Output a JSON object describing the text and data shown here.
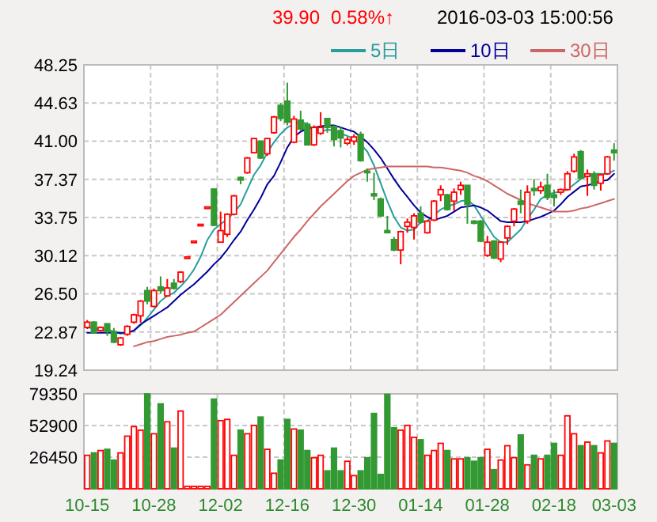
{
  "chart_data": [
    {
      "type": "candlestick",
      "annotations": [
        "39.90",
        "0.58%↑",
        "2016-03-03 15:00:56"
      ],
      "legend": "top right",
      "grid": true,
      "tick_labels": "y",
      "categories": [
        null,
        null,
        null,
        null,
        null,
        null,
        null,
        null,
        null,
        null,
        null,
        null,
        null,
        null,
        null,
        null,
        null,
        null,
        null,
        null,
        null,
        null,
        null,
        null,
        null,
        null,
        null,
        null,
        null,
        null,
        null,
        null,
        null,
        null,
        null,
        null,
        null,
        null,
        null,
        null,
        null,
        null,
        null,
        null,
        null,
        null,
        null,
        null,
        null,
        null,
        null,
        null,
        null,
        null,
        null,
        null,
        null,
        null,
        null,
        null,
        null,
        null,
        null,
        null,
        null,
        null,
        null,
        null,
        null,
        null,
        null,
        null,
        null,
        null,
        null,
        null,
        null,
        null,
        null,
        null
      ],
      "ylim": [
        19.24,
        48.25
      ],
      "yticks": [
        19.24,
        22.87,
        {
          "value": 26.5,
          "label": "26.50"
        },
        30.12,
        33.75,
        37.37,
        {
          "value": 41,
          "label": "41.00"
        },
        44.63,
        48.25
      ],
      "colors": [
        "#ff0000",
        "#339933",
        "#ff0000",
        "#339933",
        "#339933",
        "#ff0000",
        "#ff0000",
        "#ff0000",
        "#ff0000",
        "#339933",
        "#ff0000",
        "#339933",
        "#ff0000",
        "#339933",
        "#ff0000",
        "#ff0000",
        "#ff0000",
        "#ff0000",
        "#ff0000",
        "#339933",
        "#ff0000",
        "#ff0000",
        "#ff0000",
        "#339933",
        "#ff0000",
        "#ff0000",
        "#339933",
        "#ff0000",
        "#ff0000",
        "#339933",
        "#339933",
        "#ff0000",
        "#339933",
        "#339933",
        "#ff0000",
        "#ff0000",
        "#339933",
        "#339933",
        "#339933",
        "#ff0000",
        "#ff0000",
        "#339933",
        "#339933",
        "#339933",
        "#339933",
        "#339933",
        "#339933",
        "#ff0000",
        "#ff0000",
        "#ff0000",
        "#339933",
        "#ff0000",
        "#ff0000",
        "#ff0000",
        "#339933",
        "#ff0000",
        "#ff0000",
        "#339933",
        "#339933",
        "#339933",
        "#ff0000",
        "#339933",
        "#ff0000",
        "#ff0000",
        "#ff0000",
        "#339933",
        "#ff0000",
        "#339933",
        "#ff0000",
        "#339933",
        "#339933",
        "#ff0000",
        "#ff0000",
        "#ff0000",
        "#339933",
        "#ff0000",
        "#339933",
        "#ff0000",
        "#ff0000",
        "#339933"
      ],
      "ohlc": [
        [
          23.3,
          24.0,
          23.15,
          23.8
        ],
        [
          23.8,
          23.9,
          22.7,
          22.8
        ],
        [
          23.0,
          23.4,
          22.9,
          23.3
        ],
        [
          23.65,
          23.65,
          22.5,
          22.9
        ],
        [
          22.9,
          23.25,
          21.8,
          21.9
        ],
        [
          21.65,
          22.4,
          21.55,
          22.3
        ],
        [
          22.65,
          23.5,
          22.5,
          23.4
        ],
        [
          23.8,
          24.6,
          23.65,
          24.5
        ],
        [
          24.4,
          25.9,
          23.75,
          25.8
        ],
        [
          26.8,
          27.15,
          25.5,
          25.8
        ],
        [
          25.3,
          27.0,
          25.2,
          26.8
        ],
        [
          27.15,
          28.15,
          26.5,
          26.8
        ],
        [
          26.3,
          27.9,
          26.2,
          27.05
        ],
        [
          27.5,
          27.9,
          26.9,
          27.0
        ],
        [
          27.65,
          28.65,
          27.5,
          28.55
        ],
        [
          30.0,
          30.0,
          30.0,
          30.0
        ],
        [
          31.5,
          31.5,
          31.5,
          31.5
        ],
        [
          33.1,
          33.1,
          33.1,
          33.1
        ],
        [
          34.75,
          34.75,
          34.75,
          34.75
        ],
        [
          36.45,
          36.45,
          32.95,
          33.0
        ],
        [
          31.4,
          34.3,
          31.4,
          32.5
        ],
        [
          32.15,
          34.15,
          31.9,
          34.05
        ],
        [
          34.05,
          35.9,
          33.95,
          35.8
        ],
        [
          37.55,
          37.65,
          36.9,
          37.3
        ],
        [
          38.0,
          39.5,
          37.9,
          39.4
        ],
        [
          39.9,
          41.3,
          39.85,
          41.25
        ],
        [
          41.0,
          41.05,
          39.3,
          39.4
        ],
        [
          39.8,
          41.3,
          39.6,
          41.25
        ],
        [
          41.8,
          43.4,
          41.7,
          43.3
        ],
        [
          44.4,
          44.65,
          42.9,
          43.15
        ],
        [
          44.8,
          46.55,
          42.5,
          42.8
        ],
        [
          40.9,
          43.4,
          40.8,
          43.1
        ],
        [
          43.0,
          43.9,
          42.0,
          42.15
        ],
        [
          42.6,
          42.8,
          40.6,
          40.65
        ],
        [
          40.65,
          42.5,
          40.55,
          42.3
        ],
        [
          41.75,
          43.75,
          41.6,
          42.3
        ],
        [
          43.15,
          43.15,
          41.8,
          42.3
        ],
        [
          42.4,
          42.5,
          40.5,
          41.15
        ],
        [
          42.0,
          42.3,
          40.4,
          41.3
        ],
        [
          40.8,
          41.4,
          40.6,
          41.15
        ],
        [
          41.0,
          41.65,
          40.65,
          41.4
        ],
        [
          41.65,
          41.9,
          39.05,
          39.15
        ],
        [
          38.15,
          38.4,
          37.15,
          38.05
        ],
        [
          36.0,
          38.0,
          35.4,
          35.8
        ],
        [
          35.5,
          35.65,
          33.8,
          33.9
        ],
        [
          32.5,
          33.9,
          32.3,
          32.3
        ],
        [
          31.65,
          31.9,
          30.55,
          30.65
        ],
        [
          30.65,
          32.5,
          29.3,
          32.4
        ],
        [
          32.9,
          33.65,
          32.3,
          33.3
        ],
        [
          32.8,
          34.15,
          31.65,
          33.9
        ],
        [
          34.15,
          34.8,
          33.15,
          33.3
        ],
        [
          32.3,
          33.5,
          32.2,
          33.4
        ],
        [
          33.5,
          35.4,
          33.4,
          35.3
        ],
        [
          35.9,
          36.8,
          35.3,
          36.4
        ],
        [
          35.9,
          36.0,
          34.4,
          34.5
        ],
        [
          35.3,
          36.5,
          34.4,
          36.15
        ],
        [
          36.4,
          37.15,
          35.9,
          36.8
        ],
        [
          36.8,
          36.8,
          33.15,
          35.0
        ],
        [
          33.4,
          33.5,
          33.1,
          33.2
        ],
        [
          33.4,
          33.5,
          31.4,
          31.5
        ],
        [
          30.15,
          32.0,
          30.0,
          31.4
        ],
        [
          31.5,
          31.6,
          29.8,
          29.9
        ],
        [
          29.8,
          31.5,
          29.5,
          31.4
        ],
        [
          31.8,
          33.0,
          31.15,
          32.9
        ],
        [
          33.4,
          34.65,
          32.9,
          34.55
        ],
        [
          35.3,
          36.4,
          34.15,
          35.0
        ],
        [
          33.4,
          36.8,
          33.15,
          36.15
        ],
        [
          36.5,
          37.4,
          35.8,
          36.3
        ],
        [
          36.3,
          37.15,
          36.0,
          36.65
        ],
        [
          36.8,
          37.9,
          35.4,
          35.65
        ],
        [
          35.9,
          36.4,
          34.8,
          35.65
        ],
        [
          36.15,
          36.5,
          35.9,
          36.4
        ],
        [
          36.4,
          38.15,
          36.3,
          37.9
        ],
        [
          38.15,
          39.8,
          38.0,
          39.5
        ],
        [
          40.0,
          40.15,
          37.4,
          37.5
        ],
        [
          37.65,
          38.3,
          35.8,
          37.9
        ],
        [
          37.9,
          38.15,
          36.4,
          36.8
        ],
        [
          37.0,
          37.9,
          36.3,
          37.8
        ],
        [
          37.9,
          39.6,
          37.8,
          39.5
        ],
        [
          40.15,
          40.8,
          39.15,
          39.9
        ]
      ],
      "series": [
        {
          "type": "line",
          "name": "5日",
          "color": "#2a9d9d",
          "values": [
            23.3,
            23.2,
            23.1,
            23.1,
            22.9,
            22.7,
            22.8,
            23.0,
            23.5,
            24.2,
            25.0,
            25.8,
            26.3,
            26.6,
            27.2,
            27.9,
            28.8,
            30.0,
            31.6,
            32.6,
            33.1,
            33.6,
            34.2,
            35.0,
            36.4,
            37.8,
            38.7,
            39.9,
            40.9,
            41.7,
            42.3,
            42.6,
            42.9,
            42.6,
            42.1,
            41.9,
            42.1,
            42.0,
            41.7,
            41.5,
            41.2,
            40.7,
            40.0,
            38.7,
            37.0,
            35.3,
            33.8,
            32.8,
            32.5,
            32.6,
            33.3,
            33.4,
            34.0,
            34.5,
            34.8,
            35.0,
            35.3,
            35.4,
            34.9,
            33.9,
            32.9,
            31.9,
            31.4,
            31.4,
            32.0,
            32.6,
            33.6,
            34.5,
            35.5,
            35.9,
            36.1,
            36.2,
            36.4,
            36.9,
            37.4,
            37.7,
            37.9,
            37.9,
            37.9,
            38.2
          ]
        },
        {
          "type": "line",
          "name": "10日",
          "color": "#000099",
          "values": [
            22.8,
            22.8,
            22.8,
            22.8,
            22.8,
            22.8,
            22.8,
            23.0,
            23.6,
            24.0,
            24.4,
            24.8,
            25.2,
            25.8,
            26.4,
            26.9,
            27.4,
            28.0,
            28.6,
            29.3,
            29.9,
            30.7,
            31.6,
            32.4,
            33.5,
            34.5,
            35.6,
            36.9,
            37.7,
            39.0,
            40.4,
            41.4,
            41.9,
            42.2,
            42.3,
            42.4,
            42.5,
            42.5,
            42.3,
            42.1,
            41.9,
            41.4,
            40.9,
            40.2,
            39.4,
            38.4,
            37.4,
            36.5,
            35.7,
            34.9,
            34.2,
            33.8,
            33.5,
            33.7,
            33.9,
            34.3,
            34.7,
            34.8,
            34.9,
            34.7,
            34.4,
            33.9,
            33.4,
            33.3,
            33.3,
            33.3,
            33.4,
            33.6,
            33.8,
            34.1,
            34.4,
            35.0,
            35.7,
            36.2,
            36.7,
            36.8,
            37.0,
            37.2,
            37.3,
            37.9
          ]
        },
        {
          "type": "line",
          "name": "30日",
          "color": "#cc6666",
          "values": [
            null,
            null,
            null,
            null,
            null,
            null,
            null,
            21.5,
            21.7,
            21.9,
            22.0,
            22.2,
            22.4,
            22.5,
            22.6,
            22.8,
            22.9,
            23.3,
            23.7,
            24.1,
            24.5,
            25.1,
            25.7,
            26.3,
            26.9,
            27.5,
            28.1,
            28.7,
            29.5,
            30.3,
            31.1,
            31.9,
            32.6,
            33.4,
            34.1,
            34.8,
            35.4,
            36.0,
            36.6,
            37.2,
            37.7,
            38.0,
            38.3,
            38.4,
            38.5,
            38.6,
            38.6,
            38.6,
            38.6,
            38.6,
            38.6,
            38.6,
            38.5,
            38.5,
            38.4,
            38.3,
            38.2,
            38.0,
            37.7,
            37.5,
            37.2,
            36.8,
            36.4,
            36.0,
            35.7,
            35.4,
            35.1,
            34.9,
            34.7,
            34.5,
            34.3,
            34.3,
            34.3,
            34.4,
            34.6,
            34.7,
            34.9,
            35.1,
            35.3,
            35.5
          ]
        }
      ]
    },
    {
      "type": "bar",
      "grid": true,
      "categories": [
        "10-15",
        null,
        null,
        null,
        null,
        null,
        null,
        null,
        null,
        null,
        "10-28",
        null,
        null,
        null,
        null,
        null,
        null,
        null,
        null,
        null,
        "12-02",
        null,
        null,
        null,
        null,
        null,
        null,
        null,
        null,
        null,
        "12-16",
        null,
        null,
        null,
        null,
        null,
        null,
        null,
        null,
        null,
        "12-30",
        null,
        null,
        null,
        null,
        null,
        null,
        null,
        null,
        null,
        "01-14",
        null,
        null,
        null,
        null,
        null,
        null,
        null,
        null,
        null,
        "01-28",
        null,
        null,
        null,
        null,
        null,
        null,
        null,
        null,
        null,
        "02-18",
        null,
        null,
        null,
        null,
        null,
        null,
        null,
        null,
        "03-03"
      ],
      "ylim": [
        0,
        79350
      ],
      "yticks": [
        26450,
        52900,
        79350
      ],
      "colors": [
        "#ff0000",
        "#339933",
        "#ff0000",
        "#339933",
        "#339933",
        "#ff0000",
        "#ff0000",
        "#ff0000",
        "#ff0000",
        "#339933",
        "#ff0000",
        "#339933",
        "#ff0000",
        "#339933",
        "#ff0000",
        "#ff0000",
        "#ff0000",
        "#ff0000",
        "#ff0000",
        "#339933",
        "#ff0000",
        "#ff0000",
        "#ff0000",
        "#339933",
        "#ff0000",
        "#ff0000",
        "#339933",
        "#ff0000",
        "#ff0000",
        "#339933",
        "#339933",
        "#ff0000",
        "#339933",
        "#339933",
        "#ff0000",
        "#ff0000",
        "#339933",
        "#339933",
        "#339933",
        "#ff0000",
        "#ff0000",
        "#339933",
        "#339933",
        "#339933",
        "#339933",
        "#339933",
        "#339933",
        "#ff0000",
        "#ff0000",
        "#ff0000",
        "#339933",
        "#ff0000",
        "#ff0000",
        "#ff0000",
        "#339933",
        "#ff0000",
        "#ff0000",
        "#339933",
        "#339933",
        "#339933",
        "#ff0000",
        "#339933",
        "#ff0000",
        "#ff0000",
        "#ff0000",
        "#339933",
        "#ff0000",
        "#339933",
        "#ff0000",
        "#339933",
        "#339933",
        "#ff0000",
        "#ff0000",
        "#ff0000",
        "#339933",
        "#ff0000",
        "#339933",
        "#ff0000",
        "#ff0000",
        "#339933"
      ],
      "values": [
        28000,
        30000,
        32000,
        33000,
        24000,
        30000,
        44000,
        52000,
        49000,
        79350,
        46000,
        71000,
        56000,
        34000,
        65000,
        2000,
        2000,
        2000,
        2000,
        75000,
        57000,
        58000,
        28000,
        49000,
        46000,
        53000,
        60000,
        33000,
        13000,
        24000,
        58000,
        50000,
        49000,
        32000,
        26000,
        28000,
        15000,
        34000,
        15000,
        23000,
        11000,
        15000,
        26000,
        63000,
        12000,
        79000,
        51000,
        49000,
        53000,
        43000,
        41000,
        28000,
        32000,
        38000,
        32000,
        25000,
        25000,
        26000,
        23000,
        26000,
        33000,
        16000,
        24000,
        36000,
        26000,
        45000,
        20000,
        28000,
        25000,
        28000,
        38000,
        28000,
        61000,
        46000,
        36000,
        39000,
        36000,
        30000,
        40000,
        38000
      ]
    }
  ]
}
